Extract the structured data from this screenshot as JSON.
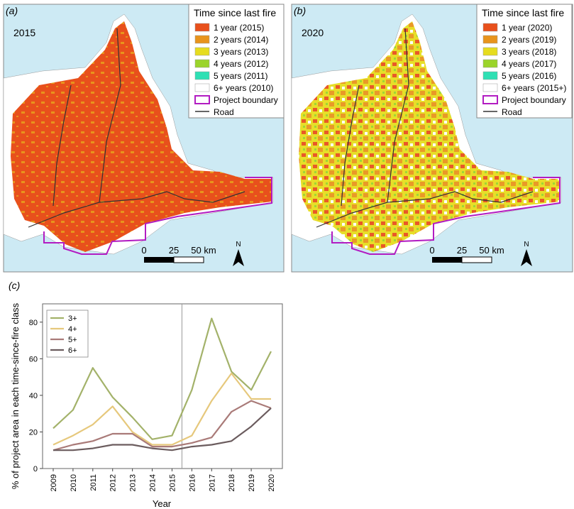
{
  "map_panels": [
    {
      "tag": "(a)",
      "year": "2015",
      "legend_title": "Time since last fire",
      "legend": [
        {
          "label": "1 year (2015)",
          "color": "#e8501c"
        },
        {
          "label": "2 years (2014)",
          "color": "#e8941c"
        },
        {
          "label": "3 years (2013)",
          "color": "#e6dc1e"
        },
        {
          "label": "4 years (2012)",
          "color": "#9bd42a"
        },
        {
          "label": "5 years (2011)",
          "color": "#2ee0b4"
        },
        {
          "label": "6+ years (2010)",
          "color": "#ffffff"
        },
        {
          "label": "Project boundary",
          "color": "#b21cc2"
        },
        {
          "label": "Road",
          "color": "#333333"
        }
      ],
      "scale": {
        "zero": "0",
        "mid": "25",
        "end": "50 km"
      },
      "north": "N"
    },
    {
      "tag": "(b)",
      "year": "2020",
      "legend_title": "Time since last fire",
      "legend": [
        {
          "label": "1 year (2020)",
          "color": "#e8501c"
        },
        {
          "label": "2 years (2019)",
          "color": "#e8941c"
        },
        {
          "label": "3 years (2018)",
          "color": "#e6dc1e"
        },
        {
          "label": "4 years (2017)",
          "color": "#9bd42a"
        },
        {
          "label": "5 years (2016)",
          "color": "#2ee0b4"
        },
        {
          "label": "6+ years (2015+)",
          "color": "#ffffff"
        },
        {
          "label": "Project boundary",
          "color": "#b21cc2"
        },
        {
          "label": "Road",
          "color": "#333333"
        }
      ],
      "scale": {
        "zero": "0",
        "mid": "25",
        "end": "50 km"
      },
      "north": "N"
    }
  ],
  "chart_data": {
    "tag": "(c)",
    "type": "line",
    "x": [
      "2009",
      "2010",
      "2011",
      "2012",
      "2013",
      "2014",
      "2015",
      "2016",
      "2017",
      "2018",
      "2019",
      "2020"
    ],
    "series": [
      {
        "name": "3+",
        "color": "#a3b26a",
        "values": [
          22,
          32,
          55,
          39,
          28,
          16,
          18,
          43,
          82,
          53,
          43,
          64
        ]
      },
      {
        "name": "4+",
        "color": "#e6c87c",
        "values": [
          13,
          18,
          24,
          34,
          20,
          13,
          13,
          18,
          37,
          52,
          38,
          38
        ]
      },
      {
        "name": "5+",
        "color": "#a97a78",
        "values": [
          10,
          13,
          15,
          19,
          19,
          12,
          12,
          14,
          17,
          31,
          37,
          33
        ]
      },
      {
        "name": "6+",
        "color": "#6b5c5e",
        "values": [
          10,
          10,
          11,
          13,
          13,
          11,
          10,
          12,
          13,
          15,
          23,
          33
        ]
      }
    ],
    "ylabel": "% of project area in each time-since-fire class",
    "xlabel": "Year",
    "ylim": [
      0,
      90
    ],
    "yticks": [
      0,
      20,
      40,
      60,
      80
    ],
    "divider_between": [
      "2015",
      "2016"
    ],
    "legend_position": "top-left"
  }
}
